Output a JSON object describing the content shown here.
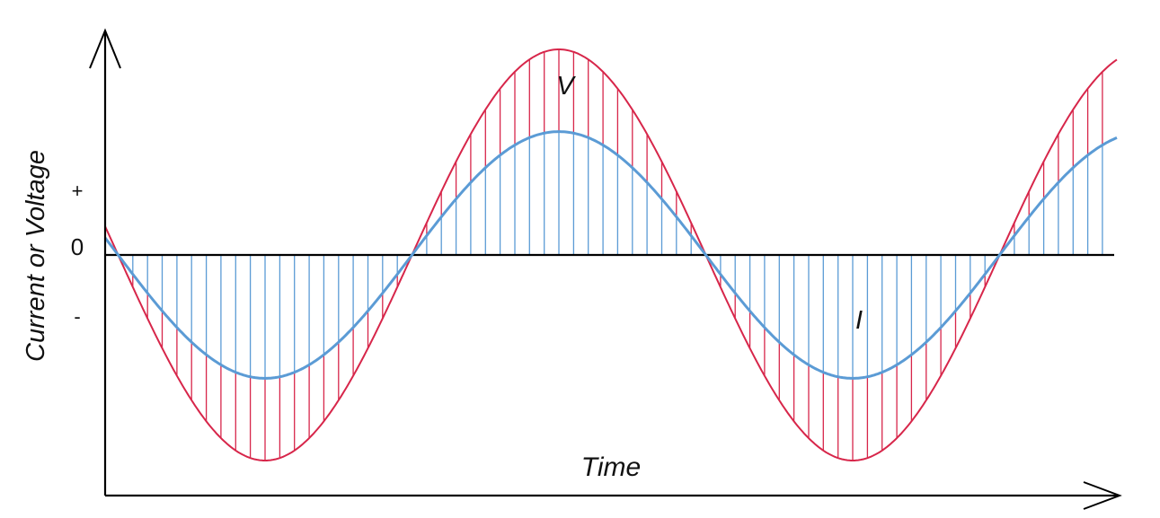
{
  "labels": {
    "y_axis": "Current or Voltage",
    "x_axis": "Time",
    "plus": "+",
    "zero": "0",
    "minus": "-",
    "voltage": "V",
    "current": "I"
  },
  "colors": {
    "voltage": "#d7264a",
    "current": "#5b9bd5",
    "axis": "#000000"
  },
  "waves": {
    "voltage_amplitude": 1.0,
    "current_amplitude": 0.6,
    "phase_relation": "in-phase",
    "cycles_shown": 2
  }
}
